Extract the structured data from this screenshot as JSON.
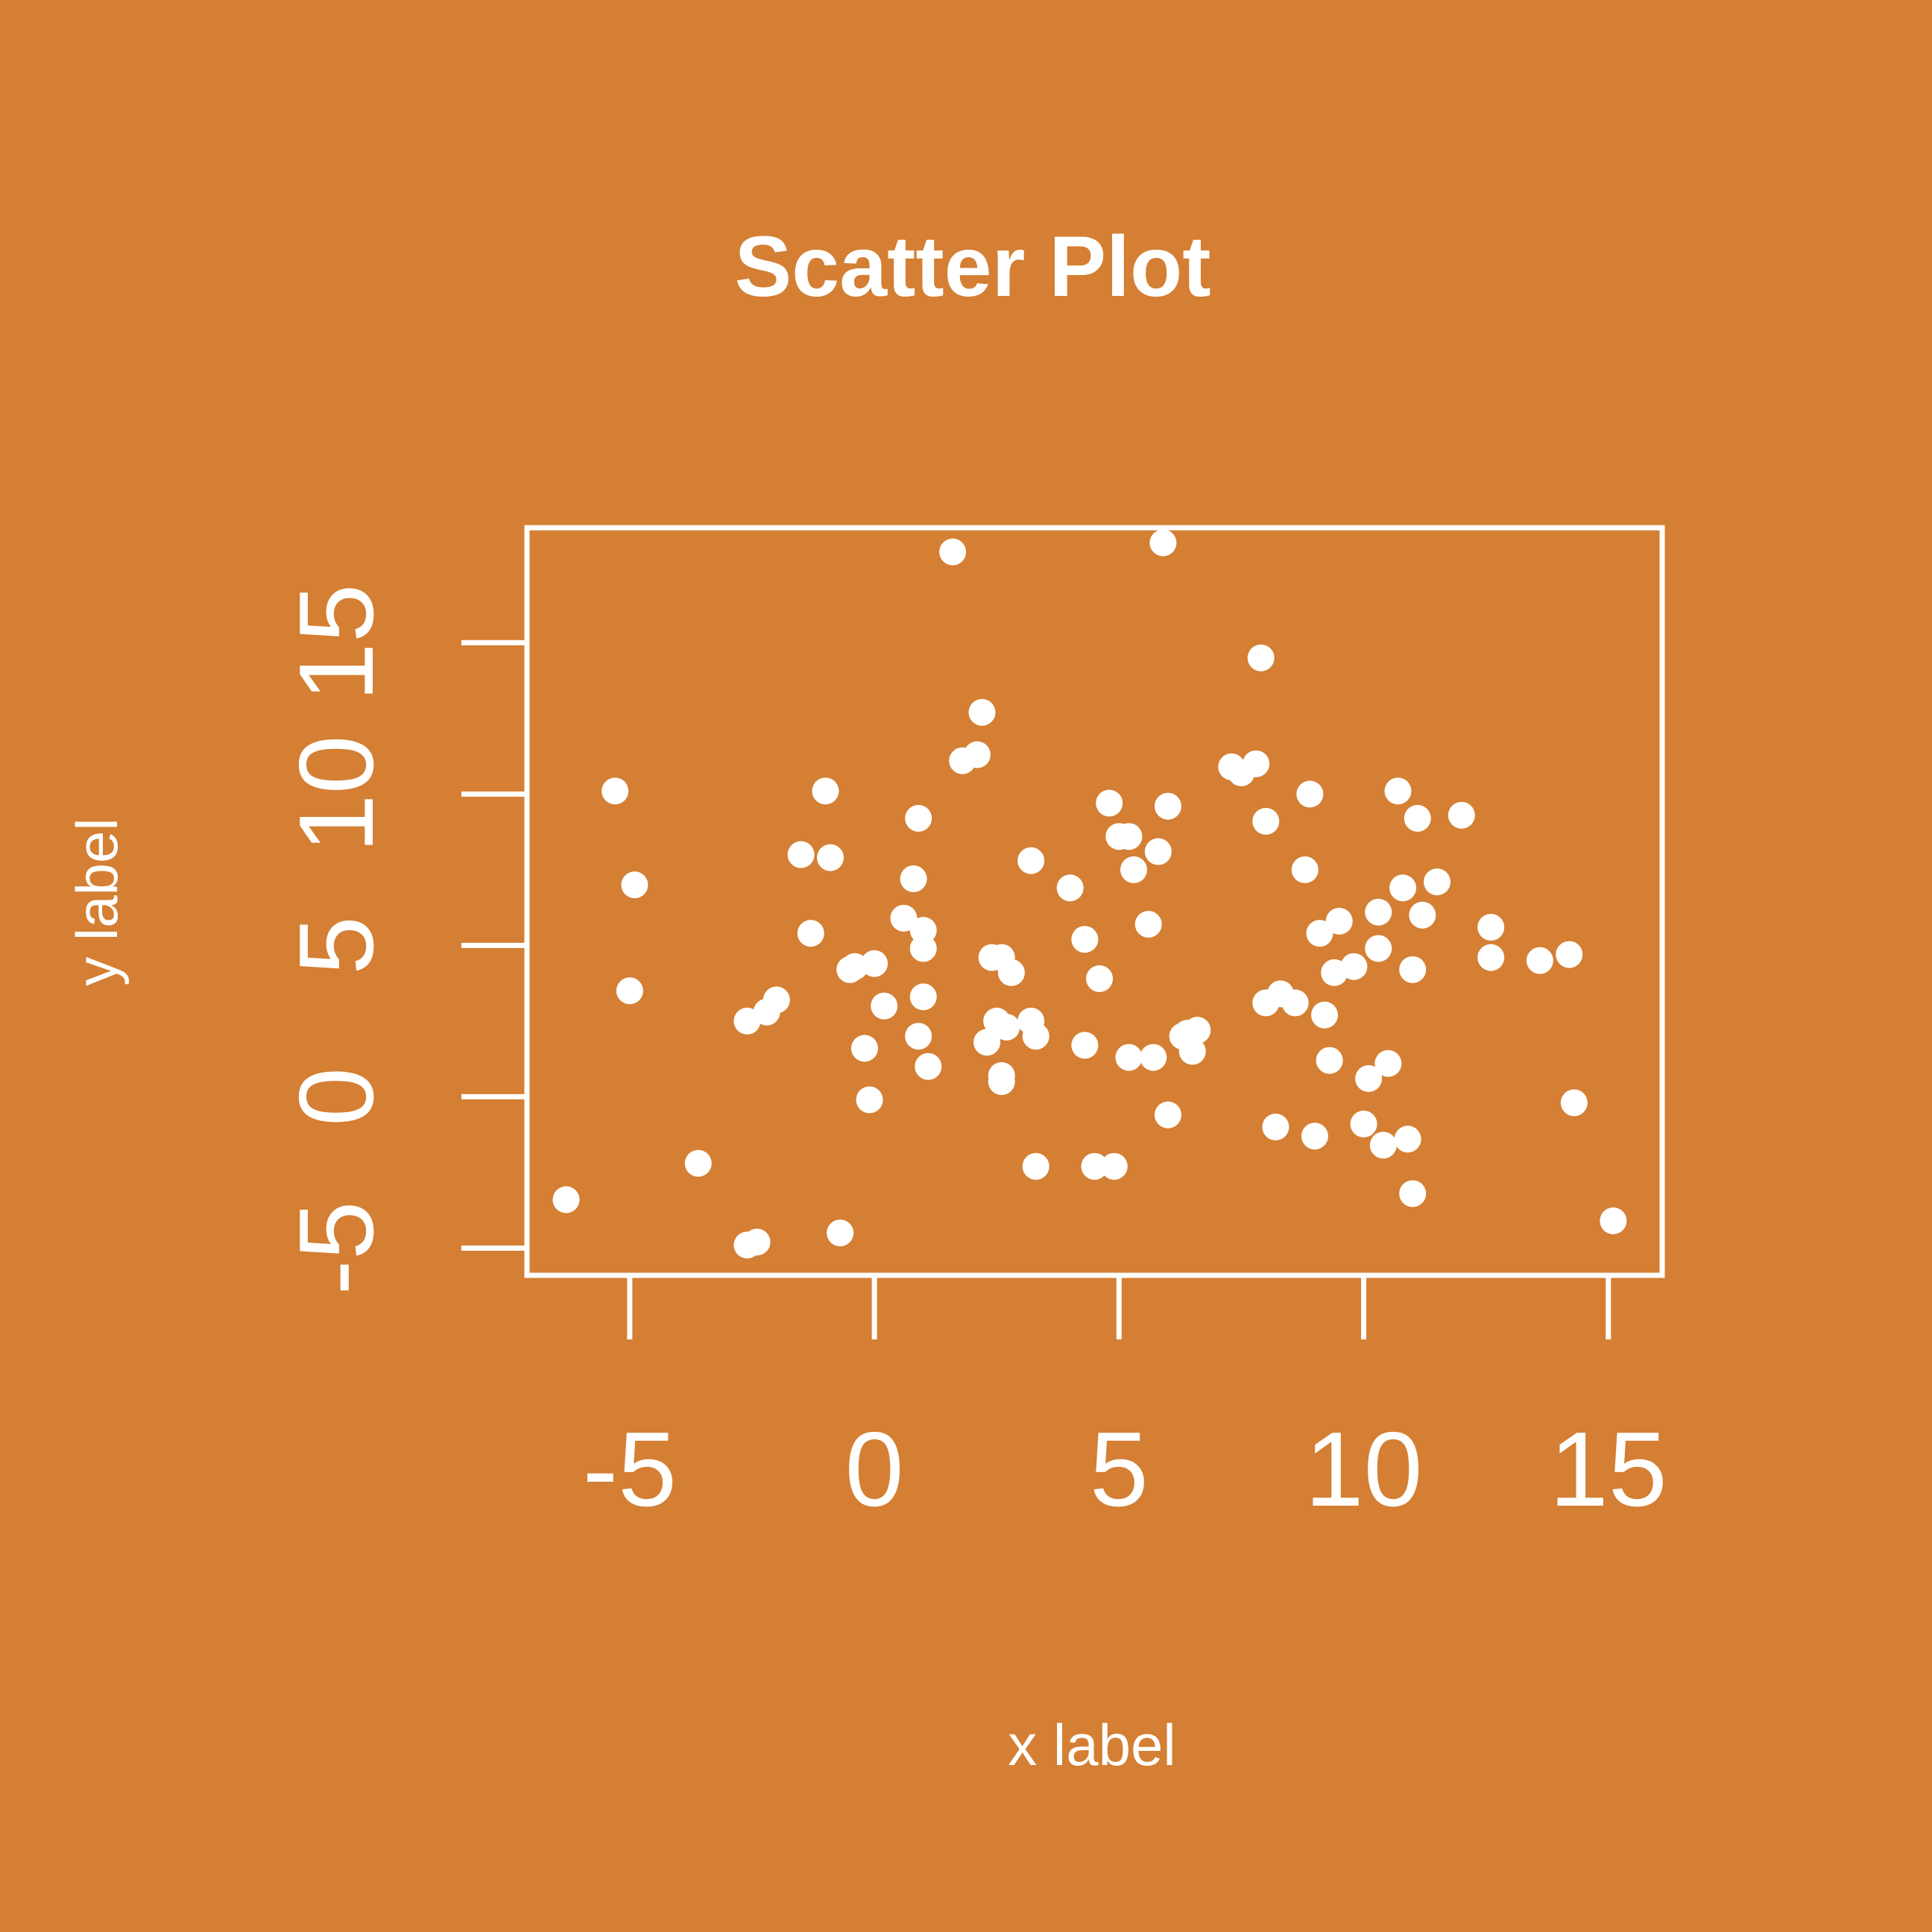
{
  "colors": {
    "background": "#d47f33",
    "foreground": "#ffffff"
  },
  "chart_data": {
    "type": "scatter",
    "title": "Scatter Plot",
    "xlabel": "x label",
    "ylabel": "y label",
    "xlim": [
      -7.1,
      16.1
    ],
    "ylim": [
      -5.9,
      18.8
    ],
    "grid": false,
    "legend": "none",
    "x_ticks": [
      -5,
      0,
      5,
      10,
      15
    ],
    "x_tick_labels": [
      "-5",
      "0",
      "5",
      "10",
      "15"
    ],
    "y_ticks": [
      -5,
      0,
      5,
      10,
      15
    ],
    "y_tick_labels": [
      "-5",
      "0",
      "5",
      "10",
      "15"
    ],
    "series": [
      {
        "x": [
          -6.3,
          -5.3,
          -4.9,
          -5.0,
          -3.6,
          -2.6,
          -2.4,
          -2.2,
          -2.6,
          -2.0,
          -1.5,
          -1.3,
          -1.0,
          -0.9,
          -0.7,
          -0.5,
          -0.4,
          -0.2,
          -0.1,
          0.0,
          0.2,
          0.6,
          1.0,
          0.8,
          0.9,
          1.0,
          1.0,
          0.9,
          1.1,
          1.6,
          1.8,
          2.1,
          2.2,
          2.3,
          2.6,
          2.4,
          2.5,
          2.6,
          2.7,
          2.6,
          2.8,
          3.3,
          3.2,
          3.2,
          3.3,
          4.0,
          4.3,
          4.3,
          4.5,
          4.6,
          4.8,
          4.9,
          5.0,
          5.2,
          5.3,
          5.2,
          5.7,
          5.6,
          5.8,
          5.9,
          6.0,
          6.0,
          6.3,
          6.5,
          6.4,
          6.6,
          7.3,
          7.5,
          7.8,
          7.9,
          8.0,
          8.2,
          8.0,
          8.3,
          8.6,
          8.8,
          8.9,
          9.1,
          9.0,
          9.2,
          9.3,
          9.4,
          9.5,
          9.8,
          10.0,
          10.1,
          10.3,
          10.3,
          10.4,
          10.5,
          10.7,
          10.8,
          10.9,
          11.0,
          11.1,
          11.0,
          11.2,
          11.5,
          12.0,
          12.6,
          12.6,
          13.6,
          14.2,
          14.3,
          15.1
        ],
        "y": [
          -3.4,
          10.1,
          7.0,
          3.5,
          -2.2,
          -4.9,
          -4.8,
          2.8,
          2.5,
          3.2,
          8.0,
          5.4,
          10.1,
          7.9,
          -4.5,
          4.2,
          4.3,
          1.6,
          -0.1,
          4.4,
          3.0,
          5.9,
          3.3,
          7.2,
          2.0,
          5.5,
          4.9,
          9.2,
          1.0,
          18.0,
          11.1,
          11.3,
          12.7,
          1.8,
          0.7,
          4.6,
          2.5,
          4.6,
          2.3,
          0.5,
          4.1,
          2.0,
          7.8,
          2.5,
          -2.3,
          6.9,
          5.2,
          1.7,
          -2.3,
          3.9,
          9.7,
          -2.3,
          8.6,
          1.3,
          7.5,
          8.6,
          1.3,
          5.7,
          8.1,
          18.3,
          9.6,
          -0.6,
          2.0,
          1.5,
          2.1,
          2.2,
          10.9,
          10.7,
          11.0,
          14.5,
          3.1,
          -1.0,
          9.1,
          3.4,
          3.1,
          7.5,
          10.0,
          5.4,
          -1.3,
          2.7,
          1.2,
          4.1,
          5.8,
          4.3,
          -0.9,
          0.6,
          4.9,
          6.1,
          -1.6,
          1.1,
          10.1,
          6.9,
          -1.4,
          4.2,
          9.2,
          -3.2,
          6.0,
          7.1,
          9.3,
          5.6,
          4.6,
          4.5,
          4.7,
          -0.2,
          -4.1
        ]
      }
    ]
  }
}
